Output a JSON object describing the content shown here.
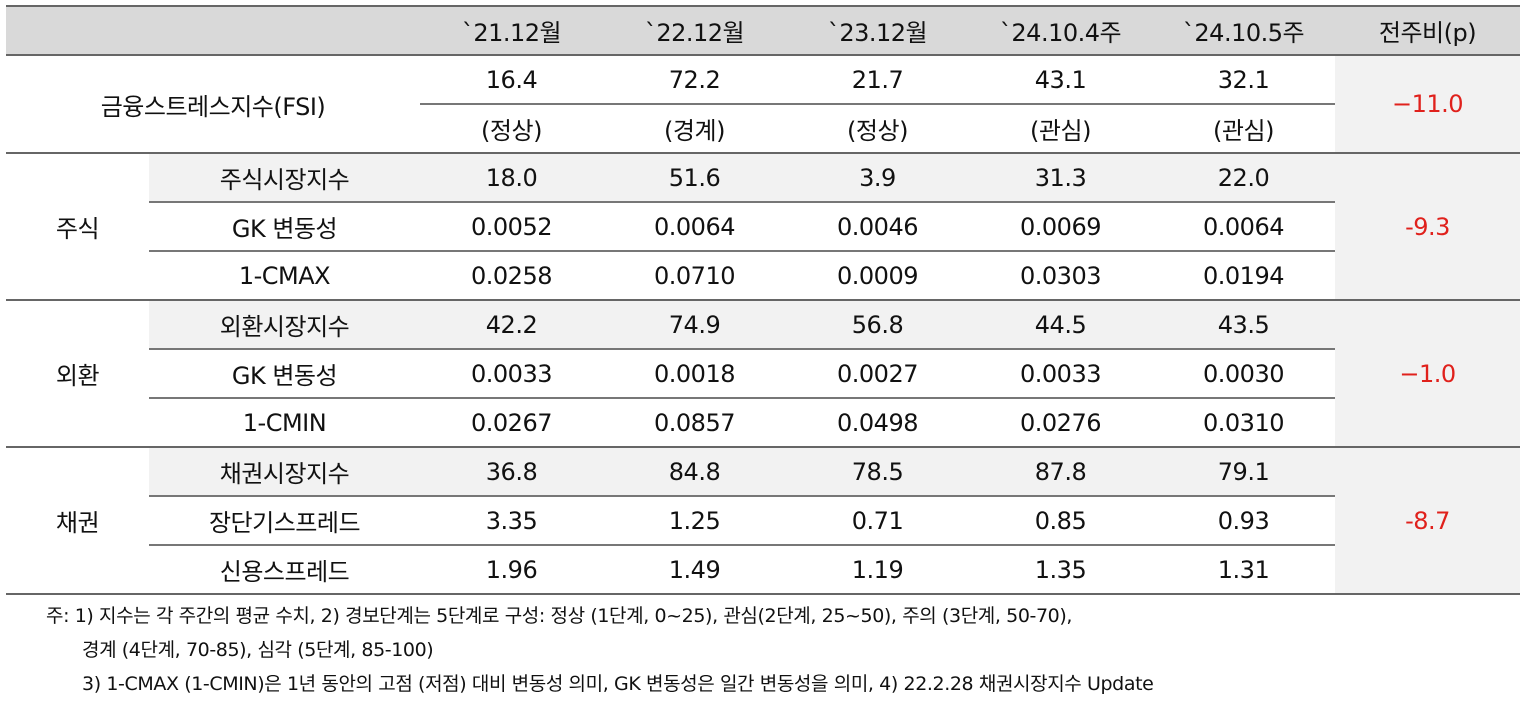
{
  "table": {
    "headers": [
      "",
      "",
      "`21.12월",
      "`22.12월",
      "`23.12월",
      "`24.10.4주",
      "`24.10.5주",
      "전주비(p)"
    ],
    "fsi": {
      "label": "금융스트레스지수(FSI)",
      "values": [
        "16.4",
        "72.2",
        "21.7",
        "43.1",
        "32.1"
      ],
      "status": [
        "(정상)",
        "(경계)",
        "(정상)",
        "(관심)",
        "(관심)"
      ],
      "change": "−11.0"
    },
    "groups": [
      {
        "category": "주식",
        "change": "-9.3",
        "rows": [
          {
            "label": "주식시장지수",
            "values": [
              "18.0",
              "51.6",
              "3.9",
              "31.3",
              "22.0"
            ]
          },
          {
            "label": "GK 변동성",
            "values": [
              "0.0052",
              "0.0064",
              "0.0046",
              "0.0069",
              "0.0064"
            ]
          },
          {
            "label": "1-CMAX",
            "values": [
              "0.0258",
              "0.0710",
              "0.0009",
              "0.0303",
              "0.0194"
            ]
          }
        ]
      },
      {
        "category": "외환",
        "change": "−1.0",
        "rows": [
          {
            "label": "외환시장지수",
            "values": [
              "42.2",
              "74.9",
              "56.8",
              "44.5",
              "43.5"
            ]
          },
          {
            "label": "GK 변동성",
            "values": [
              "0.0033",
              "0.0018",
              "0.0027",
              "0.0033",
              "0.0030"
            ]
          },
          {
            "label": "1-CMIN",
            "values": [
              "0.0267",
              "0.0857",
              "0.0498",
              "0.0276",
              "0.0310"
            ]
          }
        ]
      },
      {
        "category": "채권",
        "change": "-8.7",
        "rows": [
          {
            "label": "채권시장지수",
            "values": [
              "36.8",
              "84.8",
              "78.5",
              "87.8",
              "79.1"
            ]
          },
          {
            "label": "장단기스프레드",
            "values": [
              "3.35",
              "1.25",
              "0.71",
              "0.85",
              "0.93"
            ]
          },
          {
            "label": "신용스프레드",
            "values": [
              "1.96",
              "1.49",
              "1.19",
              "1.35",
              "1.31"
            ]
          }
        ]
      }
    ]
  },
  "notes": [
    "주: 1) 지수는 각 주간의 평균 수치, 2) 경보단계는 5단계로 구성: 정상 (1단계, 0~25), 관심(2단계, 25~50), 주의 (3단계, 50-70),",
    "경계 (4단계, 70-85), 심각 (5단계, 85-100)",
    "3) 1-CMAX (1-CMIN)은 1년 동안의 고점 (저점) 대비 변동성 의미, GK 변동성은 일간 변동성을 의미, 4) 22.2.28 채권시장지수 Update"
  ],
  "colors": {
    "header_bg": "#d9d9d9",
    "shade_bg": "#f2f2f2",
    "change_red": "#e0211c"
  }
}
